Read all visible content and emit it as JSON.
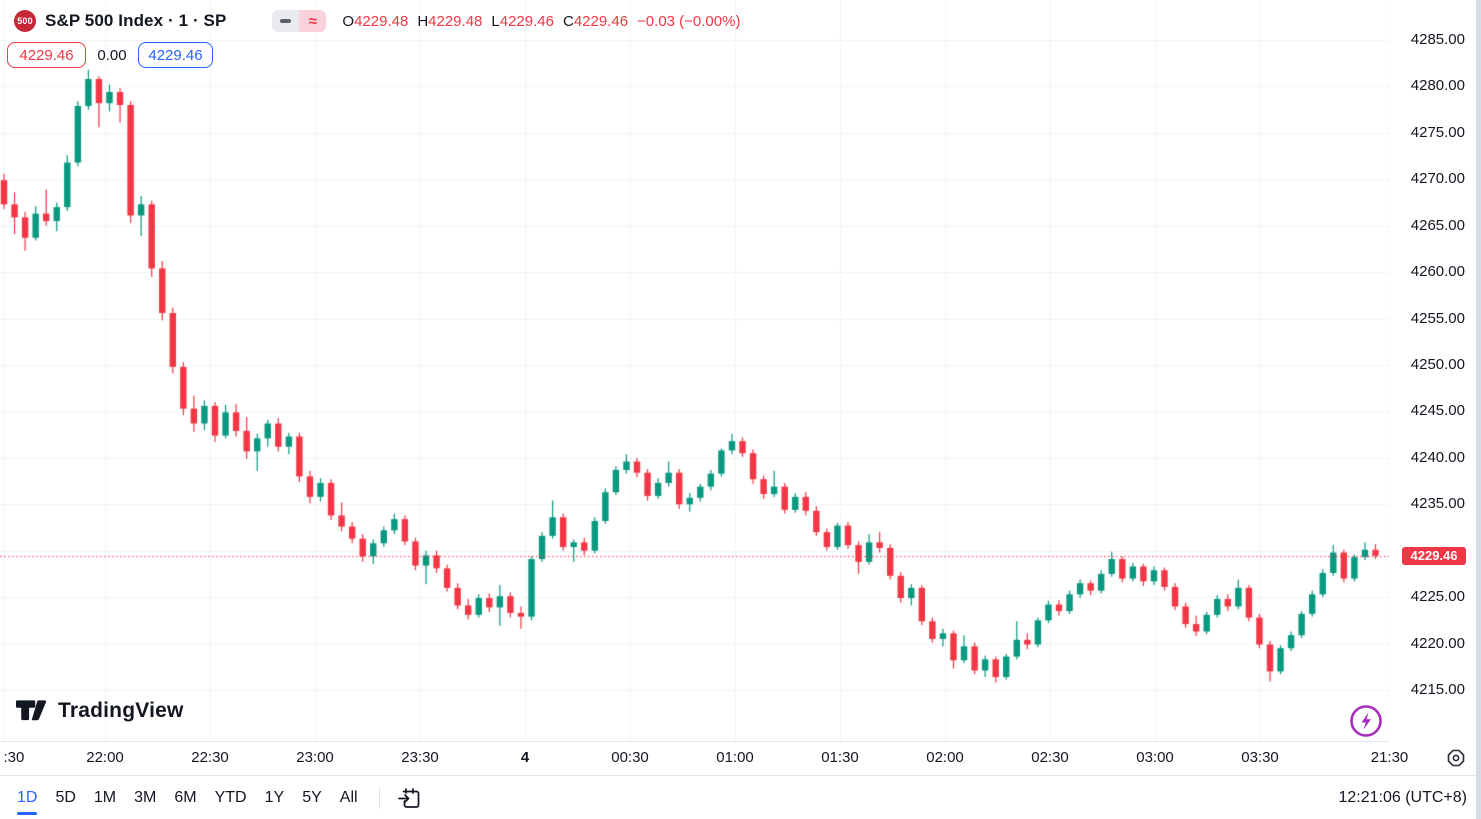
{
  "header": {
    "badge": "500",
    "title": "S&P 500 Index · 1 · SP",
    "ohlc": [
      {
        "k": "O",
        "v": "4229.48"
      },
      {
        "k": "H",
        "v": "4229.48"
      },
      {
        "k": "L",
        "v": "4229.46"
      },
      {
        "k": "C",
        "v": "4229.46"
      }
    ],
    "change": "−0.03 (−0.00%)",
    "sell_price": "4229.46",
    "spread": "0.00",
    "buy_price": "4229.46",
    "wave_glyph": "≈"
  },
  "logo": {
    "text": "TradingView"
  },
  "toolbar": {
    "ranges": [
      "1D",
      "5D",
      "1M",
      "3M",
      "6M",
      "YTD",
      "1Y",
      "5Y",
      "All"
    ],
    "active_range": "1D",
    "clock": "12:21:06 (UTC+8)"
  },
  "colors": {
    "up": "#089981",
    "down": "#f23645",
    "accent_blue": "#2962ff",
    "text": "#131722",
    "grid": "#f0f3fa",
    "axis_border": "#e0e3eb",
    "badge_bg": "#c62839",
    "pill_gray_bg": "#e9ebef",
    "pill_pink_bg": "#f9d2dc",
    "purple": "#a82cbe"
  },
  "price_axis": {
    "ticks": [
      "4285.00",
      "4280.00",
      "4275.00",
      "4270.00",
      "4265.00",
      "4260.00",
      "4255.00",
      "4250.00",
      "4245.00",
      "4240.00",
      "4235.00",
      "4225.00",
      "4220.00",
      "4215.00"
    ],
    "tick_values": [
      4285,
      4280,
      4275,
      4270,
      4265,
      4260,
      4255,
      4250,
      4245,
      4240,
      4235,
      4225,
      4220,
      4215
    ],
    "grid_values": [
      4285,
      4280,
      4275,
      4270,
      4265,
      4260,
      4255,
      4250,
      4245,
      4240,
      4235,
      4230,
      4225,
      4220,
      4215
    ],
    "last_price_label": "4229.46"
  },
  "time_axis": {
    "ticks": [
      {
        "label": ":30",
        "m": 1,
        "align": "left"
      },
      {
        "label": "22:00",
        "m": 30
      },
      {
        "label": "22:30",
        "m": 60
      },
      {
        "label": "23:00",
        "m": 90
      },
      {
        "label": "23:30",
        "m": 120
      },
      {
        "label": "4",
        "m": 150,
        "bold": true
      },
      {
        "label": "00:30",
        "m": 180
      },
      {
        "label": "01:00",
        "m": 210
      },
      {
        "label": "01:30",
        "m": 240
      },
      {
        "label": "02:00",
        "m": 270
      },
      {
        "label": "02:30",
        "m": 300
      },
      {
        "label": "03:00",
        "m": 330
      },
      {
        "label": "03:30",
        "m": 360
      },
      {
        "label": "21:30",
        "m": 397
      }
    ]
  },
  "chart_data": {
    "type": "candlestick",
    "symbol": "S&P 500 Index",
    "interval": "1",
    "exchange": "SP",
    "current_price": 4229.46,
    "open": 4229.48,
    "high": 4229.48,
    "low": 4229.46,
    "close": 4229.46,
    "change": -0.03,
    "change_pct": -0.0,
    "y_visible_range": [
      4211.5,
      4289.3
    ],
    "x_visible_range": [
      "21:30",
      "04:00"
    ],
    "grid": true,
    "candles_format": [
      "time",
      "open",
      "high",
      "low",
      "close"
    ],
    "candles": [
      [
        "21:30",
        4269.9,
        4270.6,
        4266.8,
        4267.3
      ],
      [
        "21:33",
        4267.3,
        4268.6,
        4264.1,
        4265.9
      ],
      [
        "21:36",
        4265.9,
        4266.5,
        4262.3,
        4263.7
      ],
      [
        "21:39",
        4263.7,
        4267.1,
        4263.4,
        4266.3
      ],
      [
        "21:42",
        4266.3,
        4268.9,
        4265.0,
        4265.5
      ],
      [
        "21:45",
        4265.5,
        4267.5,
        4264.4,
        4267.0
      ],
      [
        "21:48",
        4267.0,
        4272.6,
        4266.6,
        4271.8
      ],
      [
        "21:51",
        4271.8,
        4278.4,
        4271.4,
        4277.9
      ],
      [
        "21:54",
        4277.9,
        4281.8,
        4277.5,
        4280.8
      ],
      [
        "21:57",
        4280.8,
        4281.1,
        4275.6,
        4278.2
      ],
      [
        "22:00",
        4278.2,
        4280.2,
        4277.3,
        4279.4
      ],
      [
        "22:03",
        4279.4,
        4279.8,
        4276.1,
        4278.0
      ],
      [
        "22:06",
        4278.0,
        4278.4,
        4265.3,
        4266.1
      ],
      [
        "22:09",
        4266.1,
        4268.2,
        4263.9,
        4267.3
      ],
      [
        "22:12",
        4267.3,
        4267.7,
        4259.5,
        4260.4
      ],
      [
        "22:15",
        4260.4,
        4261.2,
        4254.8,
        4255.6
      ],
      [
        "22:18",
        4255.6,
        4256.2,
        4249.1,
        4249.8
      ],
      [
        "22:21",
        4249.8,
        4250.3,
        4244.6,
        4245.3
      ],
      [
        "22:24",
        4245.3,
        4246.7,
        4242.8,
        4243.7
      ],
      [
        "22:27",
        4243.7,
        4246.2,
        4243.0,
        4245.6
      ],
      [
        "22:30",
        4245.6,
        4246.0,
        4241.7,
        4242.4
      ],
      [
        "22:33",
        4242.4,
        4245.7,
        4242.1,
        4244.9
      ],
      [
        "22:36",
        4244.9,
        4245.8,
        4242.3,
        4242.9
      ],
      [
        "22:39",
        4242.9,
        4244.4,
        4239.9,
        4240.7
      ],
      [
        "22:42",
        4240.7,
        4242.6,
        4238.6,
        4242.1
      ],
      [
        "22:45",
        4242.1,
        4244.1,
        4241.2,
        4243.7
      ],
      [
        "22:48",
        4243.7,
        4244.3,
        4240.7,
        4241.2
      ],
      [
        "22:51",
        4241.2,
        4242.7,
        4240.4,
        4242.3
      ],
      [
        "22:54",
        4242.3,
        4242.7,
        4237.4,
        4238.0
      ],
      [
        "22:57",
        4238.0,
        4238.6,
        4235.1,
        4235.8
      ],
      [
        "23:00",
        4235.8,
        4237.8,
        4235.3,
        4237.3
      ],
      [
        "23:03",
        4237.3,
        4237.7,
        4233.3,
        4233.8
      ],
      [
        "23:06",
        4233.8,
        4235.2,
        4232.1,
        4232.6
      ],
      [
        "23:09",
        4232.6,
        4233.1,
        4230.8,
        4231.3
      ],
      [
        "23:12",
        4231.3,
        4231.8,
        4228.8,
        4229.4
      ],
      [
        "23:15",
        4229.4,
        4231.2,
        4228.6,
        4230.8
      ],
      [
        "23:18",
        4230.8,
        4232.6,
        4230.4,
        4232.2
      ],
      [
        "23:21",
        4232.2,
        4234.0,
        4231.8,
        4233.4
      ],
      [
        "23:24",
        4233.4,
        4233.8,
        4230.6,
        4231.0
      ],
      [
        "23:27",
        4231.0,
        4231.4,
        4227.9,
        4228.4
      ],
      [
        "23:30",
        4228.4,
        4230.0,
        4226.4,
        4229.5
      ],
      [
        "23:33",
        4229.5,
        4230.0,
        4227.6,
        4228.1
      ],
      [
        "23:36",
        4228.1,
        4228.5,
        4225.6,
        4226.0
      ],
      [
        "23:39",
        4226.0,
        4226.5,
        4223.7,
        4224.1
      ],
      [
        "23:42",
        4224.1,
        4224.8,
        4222.6,
        4223.1
      ],
      [
        "23:45",
        4223.1,
        4225.3,
        4222.8,
        4224.9
      ],
      [
        "23:48",
        4224.9,
        4225.4,
        4223.4,
        4223.9
      ],
      [
        "23:51",
        4223.9,
        4226.3,
        4221.9,
        4225.1
      ],
      [
        "23:54",
        4225.1,
        4225.5,
        4222.8,
        4223.3
      ],
      [
        "23:57",
        4223.3,
        4224.0,
        4221.6,
        4222.9
      ],
      [
        "00:00",
        4222.9,
        4229.4,
        4222.5,
        4229.1
      ],
      [
        "00:03",
        4229.1,
        4232.0,
        4228.8,
        4231.6
      ],
      [
        "00:06",
        4231.6,
        4235.4,
        4231.3,
        4233.6
      ],
      [
        "00:09",
        4233.6,
        4234.0,
        4230.0,
        4230.4
      ],
      [
        "00:12",
        4230.4,
        4231.2,
        4228.8,
        4230.9
      ],
      [
        "00:15",
        4230.9,
        4231.4,
        4229.5,
        4230.0
      ],
      [
        "00:18",
        4230.0,
        4233.6,
        4229.7,
        4233.2
      ],
      [
        "00:21",
        4233.2,
        4236.7,
        4232.9,
        4236.3
      ],
      [
        "00:24",
        4236.3,
        4239.1,
        4236.0,
        4238.7
      ],
      [
        "00:27",
        4238.7,
        4240.4,
        4238.3,
        4239.6
      ],
      [
        "00:30",
        4239.6,
        4240.0,
        4237.9,
        4238.4
      ],
      [
        "00:33",
        4238.4,
        4238.8,
        4235.4,
        4235.9
      ],
      [
        "00:36",
        4235.9,
        4237.8,
        4235.6,
        4237.3
      ],
      [
        "00:39",
        4237.3,
        4239.6,
        4236.9,
        4238.4
      ],
      [
        "00:42",
        4238.4,
        4238.8,
        4234.5,
        4235.0
      ],
      [
        "00:45",
        4235.0,
        4236.2,
        4234.2,
        4235.7
      ],
      [
        "00:48",
        4235.7,
        4237.2,
        4235.3,
        4236.9
      ],
      [
        "00:51",
        4236.9,
        4238.7,
        4236.5,
        4238.3
      ],
      [
        "00:54",
        4238.3,
        4241.0,
        4238.0,
        4240.8
      ],
      [
        "00:57",
        4240.8,
        4242.6,
        4240.4,
        4241.8
      ],
      [
        "01:00",
        4241.8,
        4242.2,
        4240.1,
        4240.5
      ],
      [
        "01:03",
        4240.5,
        4240.9,
        4237.2,
        4237.7
      ],
      [
        "01:06",
        4237.7,
        4238.1,
        4235.6,
        4236.1
      ],
      [
        "01:09",
        4236.1,
        4238.6,
        4235.8,
        4236.9
      ],
      [
        "01:12",
        4236.9,
        4237.3,
        4234.0,
        4234.4
      ],
      [
        "01:15",
        4234.4,
        4236.2,
        4234.1,
        4235.8
      ],
      [
        "01:18",
        4235.8,
        4236.3,
        4233.8,
        4234.3
      ],
      [
        "01:21",
        4234.3,
        4234.8,
        4231.6,
        4232.0
      ],
      [
        "01:24",
        4232.0,
        4232.4,
        4230.0,
        4230.4
      ],
      [
        "01:27",
        4230.4,
        4233.0,
        4230.1,
        4232.7
      ],
      [
        "01:30",
        4232.7,
        4233.1,
        4230.2,
        4230.6
      ],
      [
        "01:33",
        4230.6,
        4231.0,
        4227.5,
        4228.8
      ],
      [
        "01:36",
        4228.8,
        4231.8,
        4228.5,
        4230.9
      ],
      [
        "01:39",
        4230.9,
        4232.0,
        4229.8,
        4230.3
      ],
      [
        "01:42",
        4230.3,
        4230.7,
        4226.9,
        4227.3
      ],
      [
        "01:45",
        4227.3,
        4227.7,
        4224.4,
        4224.9
      ],
      [
        "01:48",
        4224.9,
        4226.4,
        4224.1,
        4226.0
      ],
      [
        "01:51",
        4226.0,
        4226.3,
        4222.0,
        4222.4
      ],
      [
        "01:54",
        4222.4,
        4222.8,
        4220.1,
        4220.5
      ],
      [
        "01:57",
        4220.5,
        4221.6,
        4219.7,
        4221.1
      ],
      [
        "02:00",
        4221.1,
        4221.4,
        4217.3,
        4218.2
      ],
      [
        "02:03",
        4218.2,
        4220.9,
        4217.9,
        4219.7
      ],
      [
        "02:06",
        4219.7,
        4220.1,
        4216.7,
        4217.1
      ],
      [
        "02:09",
        4217.1,
        4218.7,
        4216.4,
        4218.3
      ],
      [
        "02:12",
        4218.3,
        4218.6,
        4215.8,
        4216.4
      ],
      [
        "02:15",
        4216.4,
        4218.9,
        4216.1,
        4218.6
      ],
      [
        "02:18",
        4218.6,
        4222.4,
        4218.3,
        4220.4
      ],
      [
        "02:21",
        4220.4,
        4221.1,
        4219.4,
        4219.9
      ],
      [
        "02:24",
        4219.9,
        4222.8,
        4219.6,
        4222.5
      ],
      [
        "02:27",
        4222.5,
        4224.6,
        4222.2,
        4224.2
      ],
      [
        "02:30",
        4224.2,
        4224.7,
        4223.0,
        4223.5
      ],
      [
        "02:33",
        4223.5,
        4225.7,
        4223.2,
        4225.3
      ],
      [
        "02:36",
        4225.3,
        4226.9,
        4224.9,
        4226.5
      ],
      [
        "02:39",
        4226.5,
        4226.8,
        4225.2,
        4225.7
      ],
      [
        "02:42",
        4225.7,
        4227.9,
        4225.4,
        4227.5
      ],
      [
        "02:45",
        4227.5,
        4229.9,
        4227.2,
        4229.1
      ],
      [
        "02:48",
        4229.1,
        4229.4,
        4226.6,
        4227.0
      ],
      [
        "02:51",
        4227.0,
        4228.7,
        4226.7,
        4228.3
      ],
      [
        "02:54",
        4228.3,
        4228.6,
        4226.2,
        4226.7
      ],
      [
        "02:57",
        4226.7,
        4228.3,
        4226.3,
        4227.9
      ],
      [
        "03:00",
        4227.9,
        4228.2,
        4225.7,
        4226.1
      ],
      [
        "03:03",
        4226.1,
        4226.5,
        4223.6,
        4224.0
      ],
      [
        "03:06",
        4224.0,
        4224.4,
        4221.7,
        4222.1
      ],
      [
        "03:09",
        4222.1,
        4223.0,
        4220.8,
        4221.3
      ],
      [
        "03:12",
        4221.3,
        4223.4,
        4221.0,
        4223.1
      ],
      [
        "03:15",
        4223.1,
        4225.2,
        4222.8,
        4224.8
      ],
      [
        "03:18",
        4224.8,
        4225.3,
        4223.5,
        4224.0
      ],
      [
        "03:21",
        4224.0,
        4226.9,
        4223.7,
        4226.0
      ],
      [
        "03:24",
        4226.0,
        4226.3,
        4222.4,
        4222.8
      ],
      [
        "03:27",
        4222.8,
        4223.2,
        4219.5,
        4219.9
      ],
      [
        "03:30",
        4219.9,
        4220.3,
        4215.9,
        4217.0
      ],
      [
        "03:33",
        4217.0,
        4219.8,
        4216.7,
        4219.5
      ],
      [
        "03:36",
        4219.5,
        4221.3,
        4219.2,
        4220.9
      ],
      [
        "03:39",
        4220.9,
        4223.5,
        4220.6,
        4223.2
      ],
      [
        "03:42",
        4223.2,
        4225.7,
        4222.9,
        4225.3
      ],
      [
        "03:45",
        4225.3,
        4228.0,
        4225.0,
        4227.6
      ],
      [
        "03:48",
        4227.6,
        4230.6,
        4227.3,
        4229.8
      ],
      [
        "03:51",
        4229.8,
        4230.1,
        4226.6,
        4227.0
      ],
      [
        "03:54",
        4227.0,
        4229.6,
        4226.7,
        4229.3
      ],
      [
        "03:57",
        4229.3,
        4230.9,
        4229.0,
        4230.1
      ],
      [
        "04:00",
        4230.1,
        4230.7,
        4229.1,
        4229.46
      ]
    ]
  }
}
